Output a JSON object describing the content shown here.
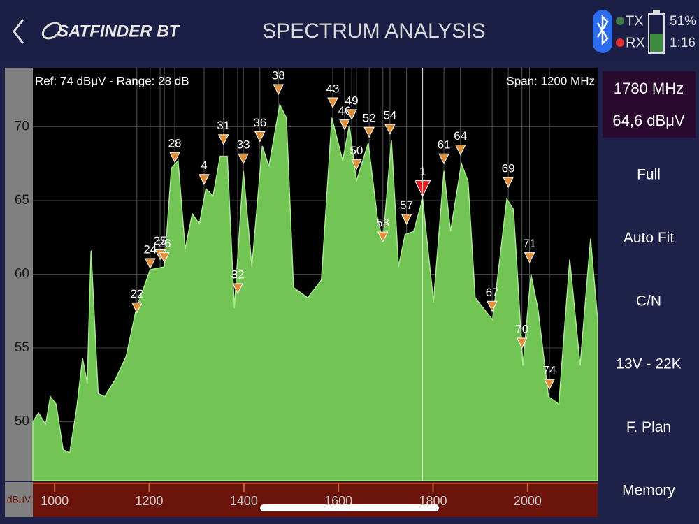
{
  "header": {
    "app_name": "SATFINDER BT",
    "title": "SPECTRUM ANALYSIS",
    "tx": "TX",
    "rx": "RX",
    "battery": "51%",
    "time": "1:16"
  },
  "sidebar": {
    "frequency": "1780 MHz",
    "level": "64,6 dBμV",
    "buttons": [
      "Full",
      "Auto Fit",
      "C/N",
      "13V - 22K",
      "F. Plan",
      "Memory"
    ]
  },
  "chart_data": {
    "type": "area",
    "ref_text": "Ref: 74 dBμV - Range: 28 dB",
    "span_text": "Span: 1200 MHz",
    "y_unit": "dBμV",
    "color": "#72c454",
    "x": [
      954,
      966,
      981,
      991,
      1003,
      1018,
      1032,
      1047,
      1059,
      1069,
      1077,
      1092,
      1106,
      1129,
      1151,
      1173,
      1202,
      1232,
      1247,
      1261,
      1276,
      1291,
      1306,
      1320,
      1335,
      1350,
      1365,
      1380,
      1399,
      1417,
      1439,
      1453,
      1476,
      1490,
      1505,
      1535,
      1564,
      1586,
      1609,
      1623,
      1638,
      1663,
      1682,
      1694,
      1712,
      1727,
      1741,
      1759,
      1778,
      1801,
      1823,
      1837,
      1860,
      1874,
      1889,
      1926,
      1956,
      1970,
      1990,
      2007,
      2022,
      2044,
      2066,
      2089,
      2111,
      2133,
      2148
    ],
    "values": [
      50,
      50.6,
      49.8,
      51.7,
      51.2,
      48.1,
      47.9,
      51.0,
      54.3,
      52.6,
      61.6,
      51.9,
      51.7,
      52.9,
      54.4,
      57.7,
      60.3,
      60.5,
      67.2,
      67.7,
      61.7,
      64.1,
      63.4,
      65.8,
      65.3,
      68.0,
      68.0,
      57.7,
      67.0,
      60.5,
      68.7,
      67.3,
      71.5,
      70.6,
      59.1,
      58.4,
      59.6,
      70.6,
      67.7,
      70.1,
      66.3,
      68.9,
      63.9,
      62.2,
      69.1,
      60.5,
      62.7,
      62.9,
      65.1,
      58.1,
      67.0,
      62.9,
      67.5,
      66.3,
      58.4,
      56.9,
      65.1,
      64.4,
      53.8,
      60.0,
      57.6,
      51.7,
      51.2,
      61.0,
      53.8,
      62.4,
      56.9
    ],
    "xlim": [
      954,
      2148
    ],
    "ylim": [
      46,
      74
    ],
    "xticks": [
      1000,
      1200,
      1400,
      1600,
      1800,
      2000
    ],
    "yticks": [
      50,
      55,
      60,
      65,
      70
    ],
    "grid": true,
    "marker_color": "#e0903a",
    "markers": [
      {
        "label": 22,
        "x": 1174,
        "y": 57.4
      },
      {
        "label": 24,
        "x": 1202,
        "y": 60.4
      },
      {
        "label": 25,
        "x": 1223,
        "y": 61.0
      },
      {
        "label": 26,
        "x": 1232,
        "y": 60.8
      },
      {
        "label": 28,
        "x": 1254,
        "y": 67.6
      },
      {
        "label": 4,
        "x": 1316,
        "y": 66.1
      },
      {
        "label": 31,
        "x": 1357,
        "y": 68.8
      },
      {
        "label": 32,
        "x": 1387,
        "y": 58.7
      },
      {
        "label": 33,
        "x": 1399,
        "y": 67.5
      },
      {
        "label": 36,
        "x": 1434,
        "y": 69.0
      },
      {
        "label": 38,
        "x": 1473,
        "y": 72.2
      },
      {
        "label": 43,
        "x": 1588,
        "y": 71.3
      },
      {
        "label": 46,
        "x": 1613,
        "y": 69.8
      },
      {
        "label": 49,
        "x": 1628,
        "y": 70.5
      },
      {
        "label": 50,
        "x": 1638,
        "y": 67.1
      },
      {
        "label": 52,
        "x": 1665,
        "y": 69.3
      },
      {
        "label": 53,
        "x": 1694,
        "y": 62.2
      },
      {
        "label": 54,
        "x": 1709,
        "y": 69.5
      },
      {
        "label": 57,
        "x": 1744,
        "y": 63.4
      },
      {
        "label": 1,
        "x": 1778,
        "y": 65.3,
        "color": "#e02020"
      },
      {
        "label": 61,
        "x": 1823,
        "y": 67.5
      },
      {
        "label": 64,
        "x": 1858,
        "y": 68.1
      },
      {
        "label": 67,
        "x": 1925,
        "y": 57.5
      },
      {
        "label": 69,
        "x": 1959,
        "y": 65.9
      },
      {
        "label": 70,
        "x": 1988,
        "y": 55.0
      },
      {
        "label": 71,
        "x": 2004,
        "y": 60.8
      },
      {
        "label": 74,
        "x": 2046,
        "y": 52.2
      }
    ]
  }
}
